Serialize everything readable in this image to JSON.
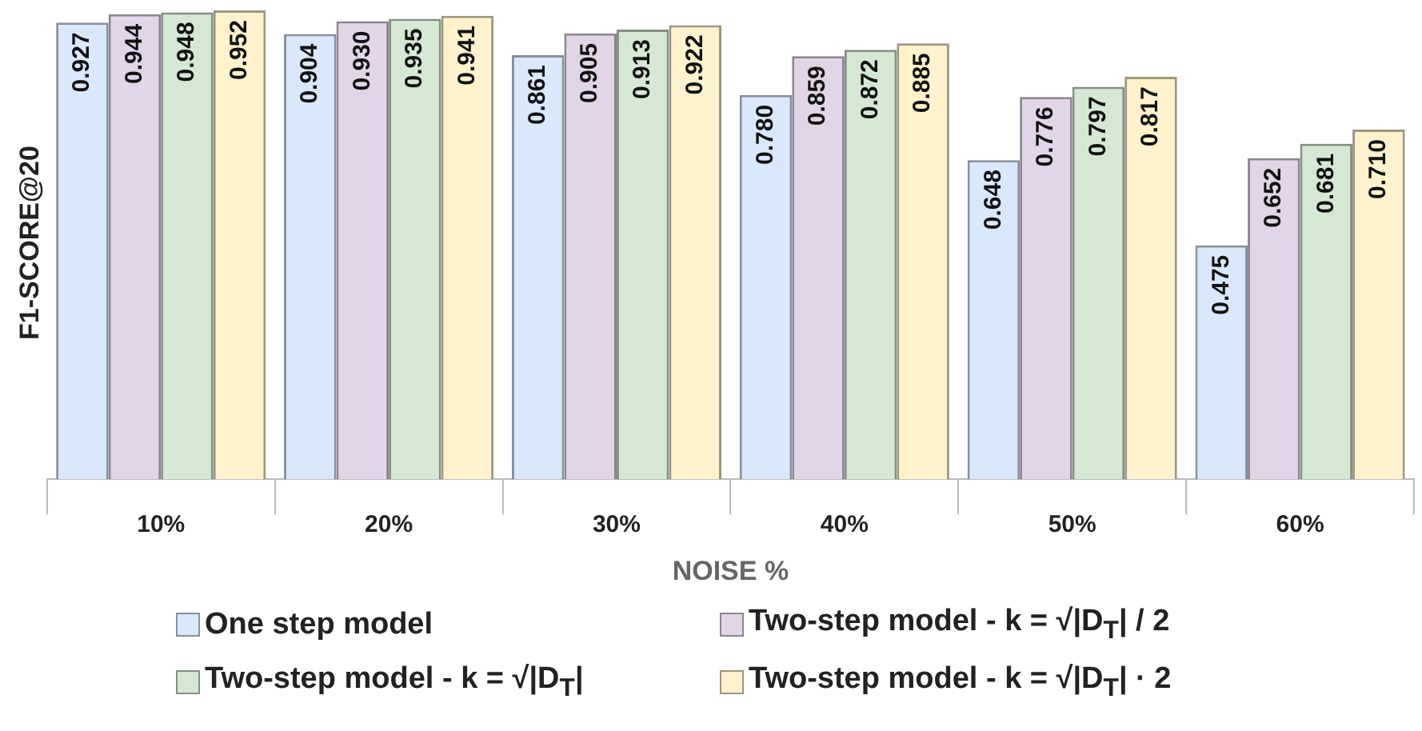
{
  "chart_data": {
    "type": "bar",
    "xlabel": "NOISE %",
    "ylabel": "F1-SCORE@20",
    "categories": [
      "10%",
      "20%",
      "30%",
      "40%",
      "50%",
      "60%"
    ],
    "series": [
      {
        "name": "One step model",
        "color": "#dae8fc",
        "values": [
          0.927,
          0.904,
          0.861,
          0.78,
          0.648,
          0.475
        ],
        "value_labels": [
          "0.927",
          "0.904",
          "0.861",
          "0.780",
          "0.648",
          "0.475"
        ]
      },
      {
        "name": "Two-step model - k = √|D$_{T}$| / 2",
        "color": "#e1d5e7",
        "values": [
          0.944,
          0.93,
          0.905,
          0.859,
          0.776,
          0.652
        ],
        "value_labels": [
          "0.944",
          "0.930",
          "0.905",
          "0.859",
          "0.776",
          "0.652"
        ]
      },
      {
        "name": "Two-step model - k = √|D$_{T}$|",
        "color": "#d5e8d4",
        "values": [
          0.948,
          0.935,
          0.913,
          0.872,
          0.797,
          0.681
        ],
        "value_labels": [
          "0.948",
          "0.935",
          "0.913",
          "0.872",
          "0.797",
          "0.681"
        ]
      },
      {
        "name": "Two-step model - k = √|D$_{T}$| · 2",
        "color": "#fff2cc",
        "values": [
          0.952,
          0.941,
          0.922,
          0.885,
          0.817,
          0.71
        ],
        "value_labels": [
          "0.952",
          "0.941",
          "0.922",
          "0.885",
          "0.817",
          "0.710"
        ]
      }
    ],
    "ylim": [
      0,
      0.96
    ],
    "tick_labels": "x",
    "grid": false,
    "legend": "bottom"
  }
}
